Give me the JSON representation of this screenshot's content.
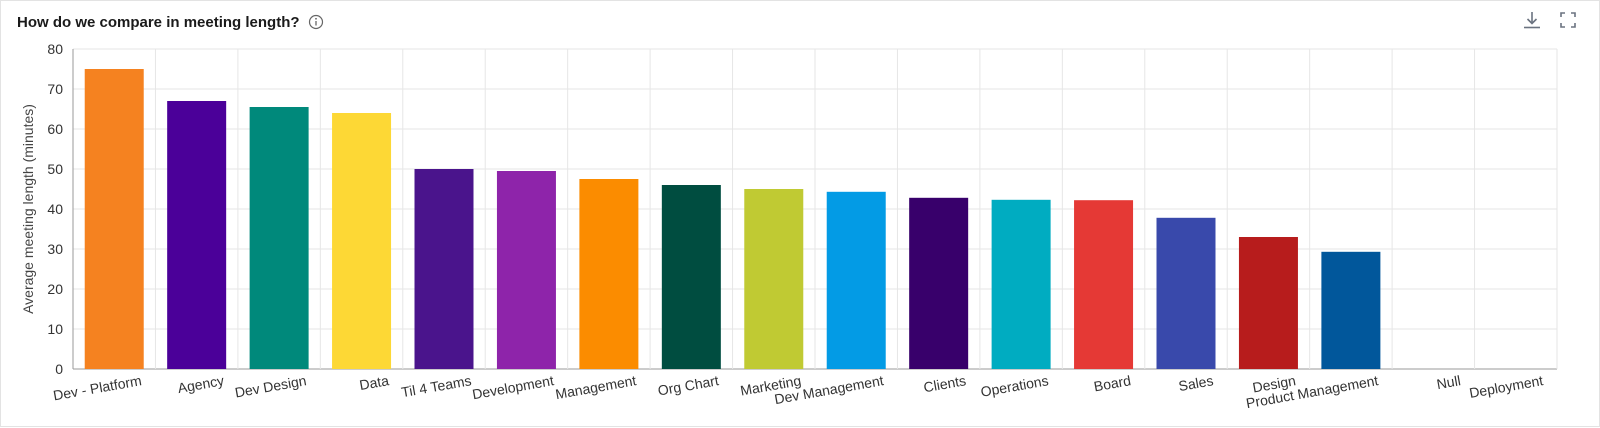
{
  "header": {
    "title": "How do we compare in meeting length?"
  },
  "toolbar": {
    "download_icon": "download-icon",
    "fullscreen_icon": "fullscreen-icon"
  },
  "chart_data": {
    "type": "bar",
    "title": "How do we compare in meeting length?",
    "xlabel": "",
    "ylabel": "Average meeting length (minutes)",
    "ylim": [
      0,
      80
    ],
    "yticks": [
      0,
      10,
      20,
      30,
      40,
      50,
      60,
      70,
      80
    ],
    "grid": true,
    "categories": [
      "Dev - Platform",
      "Agency",
      "Dev Design",
      "Data",
      "Til 4 Teams",
      "Development",
      "Management",
      "Org Chart",
      "Marketing",
      "Dev Management",
      "Clients",
      "Operations",
      "Board",
      "Sales",
      "Design",
      "Product Management",
      "Null",
      "Deployment"
    ],
    "values": [
      75,
      67,
      65.5,
      64,
      50,
      49.5,
      47.5,
      46,
      45,
      44.3,
      42.8,
      42.3,
      42.2,
      37.8,
      33,
      29.3,
      0,
      0
    ],
    "colors": [
      "#f58220",
      "#4b0099",
      "#00897b",
      "#fdd835",
      "#4a148c",
      "#8e24aa",
      "#fb8c00",
      "#004d40",
      "#c0ca33",
      "#039be5",
      "#38006b",
      "#00acc1",
      "#e53935",
      "#3949ab",
      "#b71c1c",
      "#01579b",
      "#999999",
      "#999999"
    ]
  }
}
